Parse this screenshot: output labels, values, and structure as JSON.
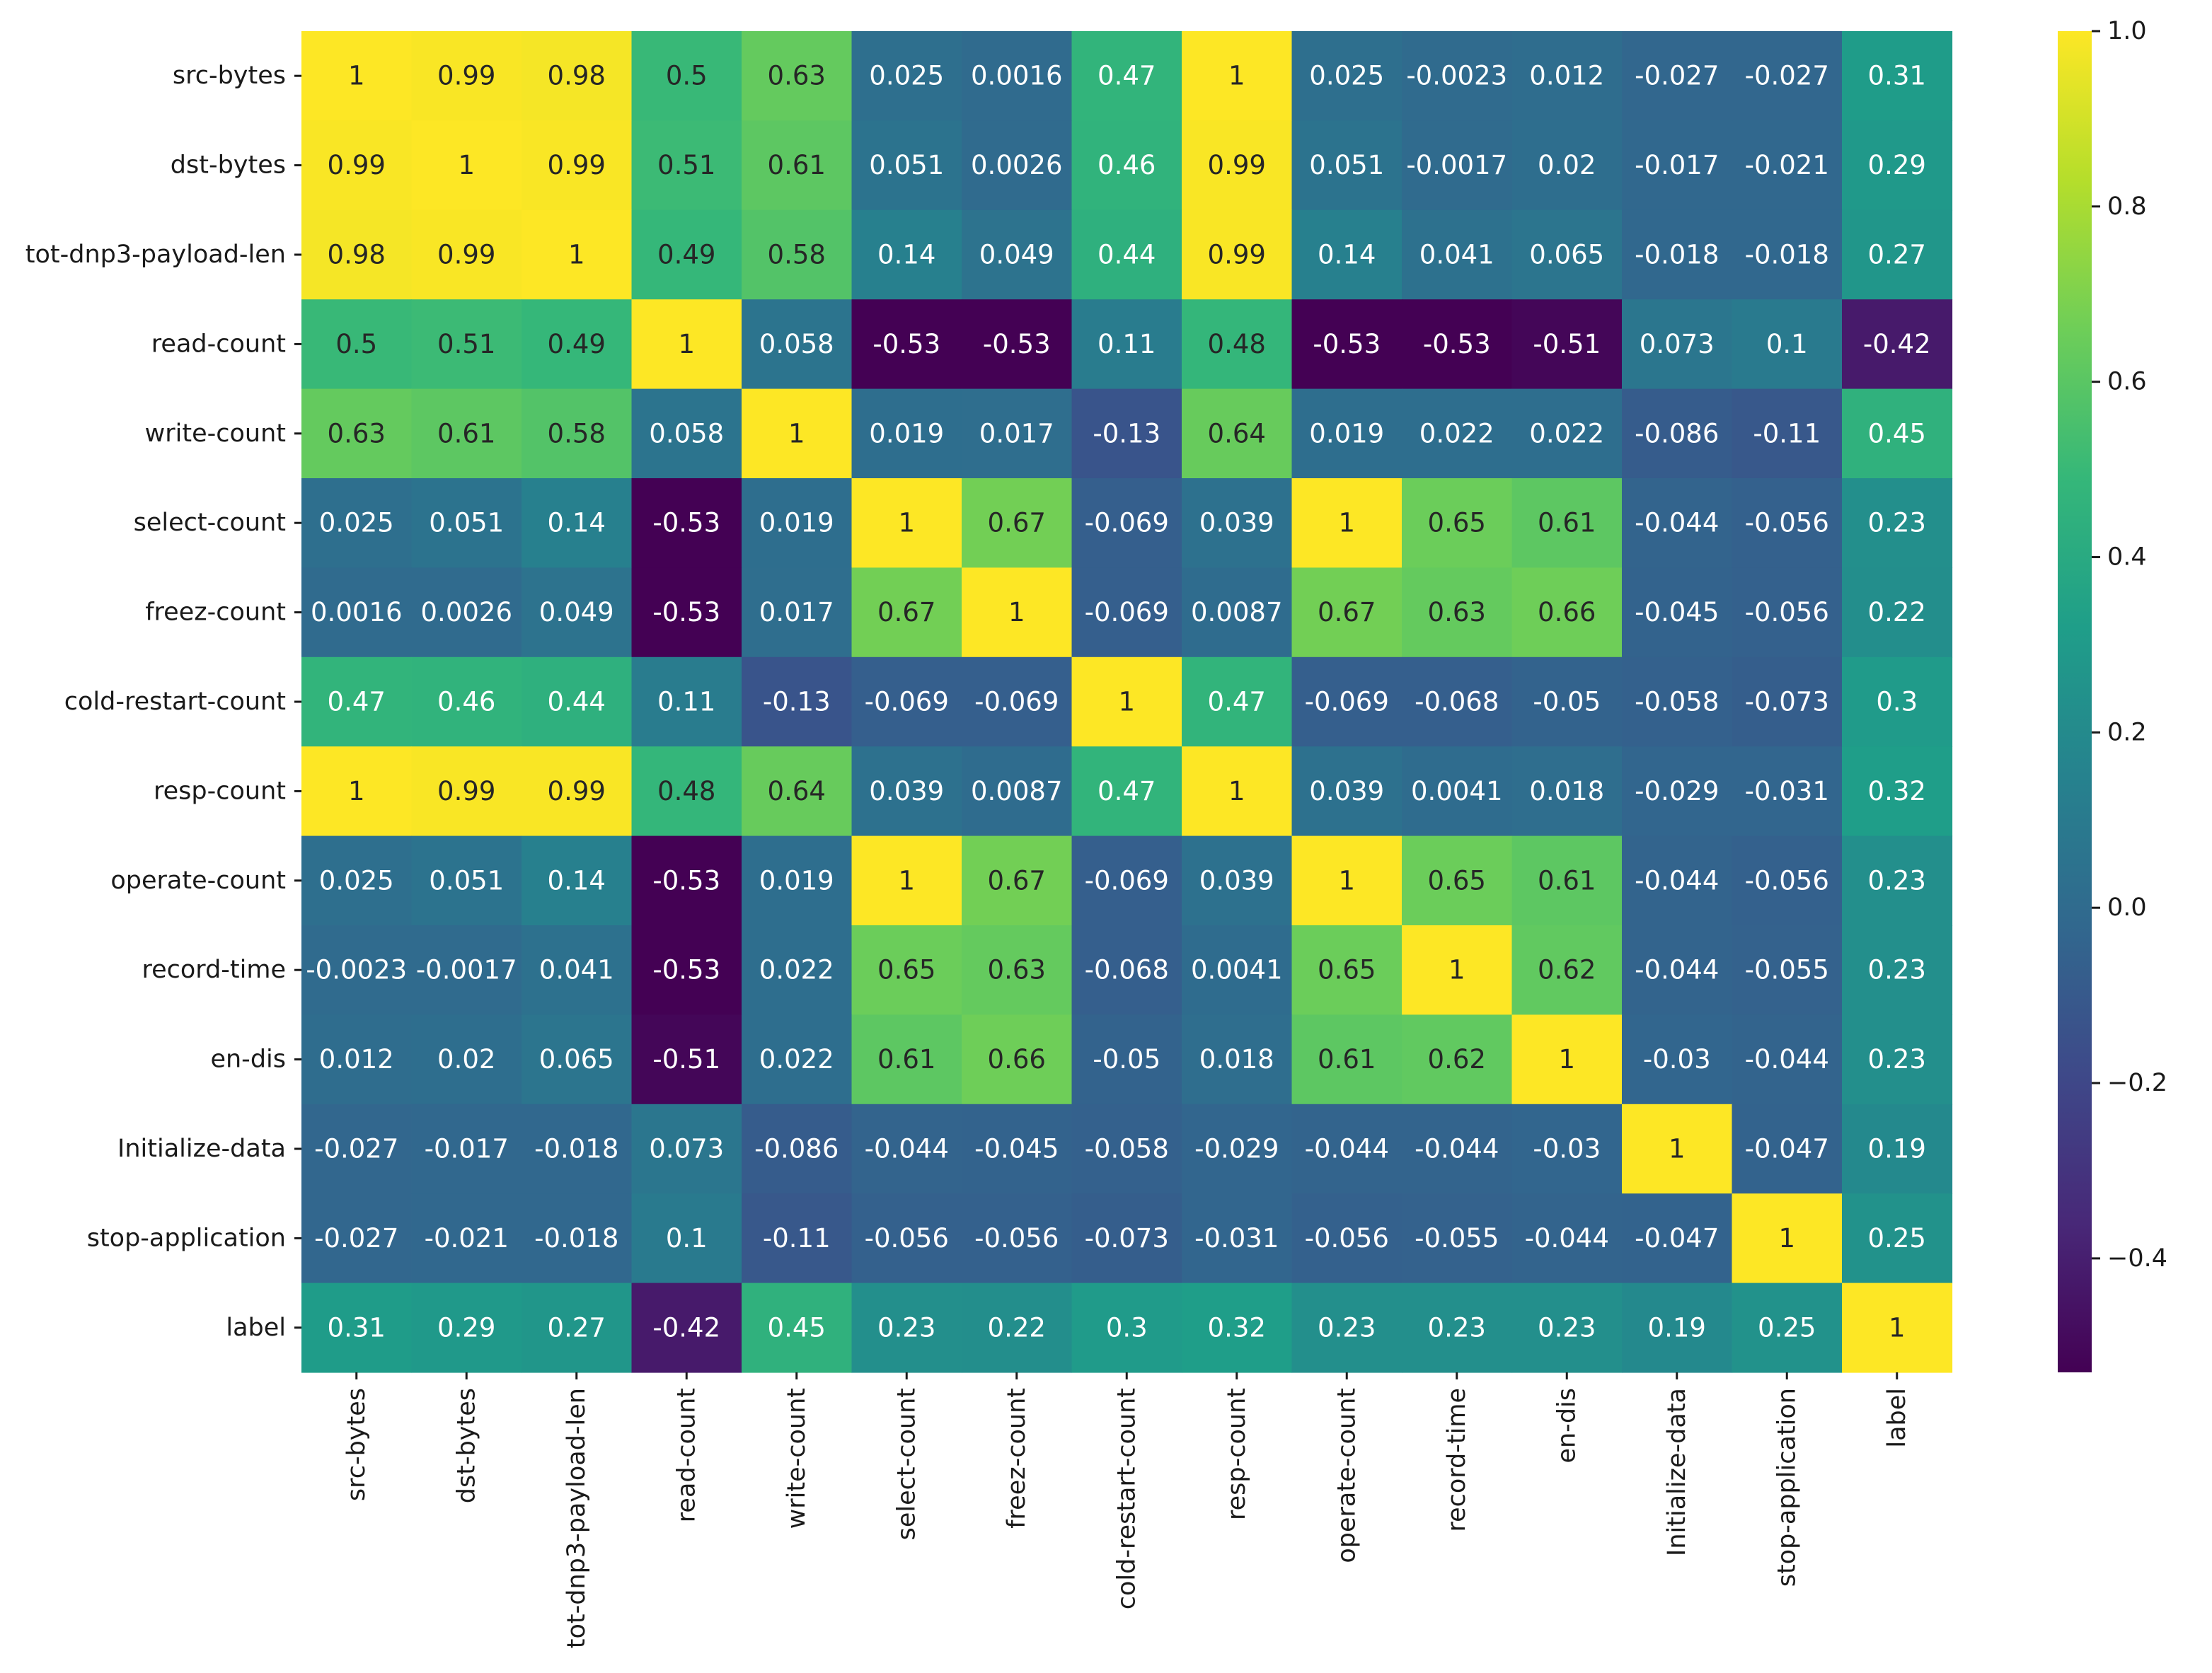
{
  "chart_data": {
    "type": "heatmap",
    "title": "",
    "xlabel": "",
    "ylabel": "",
    "colormap": "viridis",
    "vmin": -0.53,
    "vmax": 1.0,
    "rows": [
      "src-bytes",
      "dst-bytes",
      "tot-dnp3-payload-len",
      "read-count",
      "write-count",
      "select-count",
      "freez-count",
      "cold-restart-count",
      "resp-count",
      "operate-count",
      "record-time",
      "en-dis",
      "Initialize-data",
      "stop-application",
      "label"
    ],
    "columns": [
      "src-bytes",
      "dst-bytes",
      "tot-dnp3-payload-len",
      "read-count",
      "write-count",
      "select-count",
      "freez-count",
      "cold-restart-count",
      "resp-count",
      "operate-count",
      "record-time",
      "en-dis",
      "Initialize-data",
      "stop-application",
      "label"
    ],
    "values": [
      [
        1,
        0.99,
        0.98,
        0.5,
        0.63,
        0.025,
        0.0016,
        0.47,
        1,
        0.025,
        -0.0023,
        0.012,
        -0.027,
        -0.027,
        0.31
      ],
      [
        0.99,
        1,
        0.99,
        0.51,
        0.61,
        0.051,
        0.0026,
        0.46,
        0.99,
        0.051,
        -0.0017,
        0.02,
        -0.017,
        -0.021,
        0.29
      ],
      [
        0.98,
        0.99,
        1,
        0.49,
        0.58,
        0.14,
        0.049,
        0.44,
        0.99,
        0.14,
        0.041,
        0.065,
        -0.018,
        -0.018,
        0.27
      ],
      [
        0.5,
        0.51,
        0.49,
        1,
        0.058,
        -0.53,
        -0.53,
        0.11,
        0.48,
        -0.53,
        -0.53,
        -0.51,
        0.073,
        0.1,
        -0.42
      ],
      [
        0.63,
        0.61,
        0.58,
        0.058,
        1,
        0.019,
        0.017,
        -0.13,
        0.64,
        0.019,
        0.022,
        0.022,
        -0.086,
        -0.11,
        0.45
      ],
      [
        0.025,
        0.051,
        0.14,
        -0.53,
        0.019,
        1,
        0.67,
        -0.069,
        0.039,
        1,
        0.65,
        0.61,
        -0.044,
        -0.056,
        0.23
      ],
      [
        0.0016,
        0.0026,
        0.049,
        -0.53,
        0.017,
        0.67,
        1,
        -0.069,
        0.0087,
        0.67,
        0.63,
        0.66,
        -0.045,
        -0.056,
        0.22
      ],
      [
        0.47,
        0.46,
        0.44,
        0.11,
        -0.13,
        -0.069,
        -0.069,
        1,
        0.47,
        -0.069,
        -0.068,
        -0.05,
        -0.058,
        -0.073,
        0.3
      ],
      [
        1,
        0.99,
        0.99,
        0.48,
        0.64,
        0.039,
        0.0087,
        0.47,
        1,
        0.039,
        0.0041,
        0.018,
        -0.029,
        -0.031,
        0.32
      ],
      [
        0.025,
        0.051,
        0.14,
        -0.53,
        0.019,
        1,
        0.67,
        -0.069,
        0.039,
        1,
        0.65,
        0.61,
        -0.044,
        -0.056,
        0.23
      ],
      [
        -0.0023,
        -0.0017,
        0.041,
        -0.53,
        0.022,
        0.65,
        0.63,
        -0.068,
        0.0041,
        0.65,
        1,
        0.62,
        -0.044,
        -0.055,
        0.23
      ],
      [
        0.012,
        0.02,
        0.065,
        -0.51,
        0.022,
        0.61,
        0.66,
        -0.05,
        0.018,
        0.61,
        0.62,
        1,
        -0.03,
        -0.044,
        0.23
      ],
      [
        -0.027,
        -0.017,
        -0.018,
        0.073,
        -0.086,
        -0.044,
        -0.045,
        -0.058,
        -0.029,
        -0.044,
        -0.044,
        -0.03,
        1,
        -0.047,
        0.19
      ],
      [
        -0.027,
        -0.021,
        -0.018,
        0.1,
        -0.11,
        -0.056,
        -0.056,
        -0.073,
        -0.031,
        -0.056,
        -0.055,
        -0.044,
        -0.047,
        1,
        0.25
      ],
      [
        0.31,
        0.29,
        0.27,
        -0.42,
        0.45,
        0.23,
        0.22,
        0.3,
        0.32,
        0.23,
        0.23,
        0.23,
        0.19,
        0.25,
        1
      ]
    ],
    "cell_labels": [
      [
        "1",
        "0.99",
        "0.98",
        "0.5",
        "0.63",
        "0.025",
        "0.0016",
        "0.47",
        "1",
        "0.025",
        "-0.0023",
        "0.012",
        "-0.027",
        "-0.027",
        "0.31"
      ],
      [
        "0.99",
        "1",
        "0.99",
        "0.51",
        "0.61",
        "0.051",
        "0.0026",
        "0.46",
        "0.99",
        "0.051",
        "-0.0017",
        "0.02",
        "-0.017",
        "-0.021",
        "0.29"
      ],
      [
        "0.98",
        "0.99",
        "1",
        "0.49",
        "0.58",
        "0.14",
        "0.049",
        "0.44",
        "0.99",
        "0.14",
        "0.041",
        "0.065",
        "-0.018",
        "-0.018",
        "0.27"
      ],
      [
        "0.5",
        "0.51",
        "0.49",
        "1",
        "0.058",
        "-0.53",
        "-0.53",
        "0.11",
        "0.48",
        "-0.53",
        "-0.53",
        "-0.51",
        "0.073",
        "0.1",
        "-0.42"
      ],
      [
        "0.63",
        "0.61",
        "0.58",
        "0.058",
        "1",
        "0.019",
        "0.017",
        "-0.13",
        "0.64",
        "0.019",
        "0.022",
        "0.022",
        "-0.086",
        "-0.11",
        "0.45"
      ],
      [
        "0.025",
        "0.051",
        "0.14",
        "-0.53",
        "0.019",
        "1",
        "0.67",
        "-0.069",
        "0.039",
        "1",
        "0.65",
        "0.61",
        "-0.044",
        "-0.056",
        "0.23"
      ],
      [
        "0.0016",
        "0.0026",
        "0.049",
        "-0.53",
        "0.017",
        "0.67",
        "1",
        "-0.069",
        "0.0087",
        "0.67",
        "0.63",
        "0.66",
        "-0.045",
        "-0.056",
        "0.22"
      ],
      [
        "0.47",
        "0.46",
        "0.44",
        "0.11",
        "-0.13",
        "-0.069",
        "-0.069",
        "1",
        "0.47",
        "-0.069",
        "-0.068",
        "-0.05",
        "-0.058",
        "-0.073",
        "0.3"
      ],
      [
        "1",
        "0.99",
        "0.99",
        "0.48",
        "0.64",
        "0.039",
        "0.0087",
        "0.47",
        "1",
        "0.039",
        "0.0041",
        "0.018",
        "-0.029",
        "-0.031",
        "0.32"
      ],
      [
        "0.025",
        "0.051",
        "0.14",
        "-0.53",
        "0.019",
        "1",
        "0.67",
        "-0.069",
        "0.039",
        "1",
        "0.65",
        "0.61",
        "-0.044",
        "-0.056",
        "0.23"
      ],
      [
        "-0.0023",
        "-0.0017",
        "0.041",
        "-0.53",
        "0.022",
        "0.65",
        "0.63",
        "-0.068",
        "0.0041",
        "0.65",
        "1",
        "0.62",
        "-0.044",
        "-0.055",
        "0.23"
      ],
      [
        "0.012",
        "0.02",
        "0.065",
        "-0.51",
        "0.022",
        "0.61",
        "0.66",
        "-0.05",
        "0.018",
        "0.61",
        "0.62",
        "1",
        "-0.03",
        "-0.044",
        "0.23"
      ],
      [
        "-0.027",
        "-0.017",
        "-0.018",
        "0.073",
        "-0.086",
        "-0.044",
        "-0.045",
        "-0.058",
        "-0.029",
        "-0.044",
        "-0.044",
        "-0.03",
        "1",
        "-0.047",
        "0.19"
      ],
      [
        "-0.027",
        "-0.021",
        "-0.018",
        "0.1",
        "-0.11",
        "-0.056",
        "-0.056",
        "-0.073",
        "-0.031",
        "-0.056",
        "-0.055",
        "-0.044",
        "-0.047",
        "1",
        "0.25"
      ],
      [
        "0.31",
        "0.29",
        "0.27",
        "-0.42",
        "0.45",
        "0.23",
        "0.22",
        "0.3",
        "0.32",
        "0.23",
        "0.23",
        "0.23",
        "0.19",
        "0.25",
        "1"
      ]
    ],
    "colorbar": {
      "ticks": [
        1.0,
        0.8,
        0.6,
        0.4,
        0.2,
        0.0,
        -0.2,
        -0.4
      ],
      "tick_labels": [
        "1.0",
        "0.8",
        "0.6",
        "0.4",
        "0.2",
        "0.0",
        "−0.2",
        "−0.4"
      ],
      "range": [
        -0.53,
        1.0
      ]
    },
    "colors": {
      "viridis_stops": [
        "#440154",
        "#482878",
        "#3e4989",
        "#31688e",
        "#26828e",
        "#1f9e89",
        "#35b779",
        "#6ece58",
        "#b5de2b",
        "#fde725"
      ],
      "annotation_light": "#ffffff",
      "annotation_dark": "#262626"
    }
  }
}
